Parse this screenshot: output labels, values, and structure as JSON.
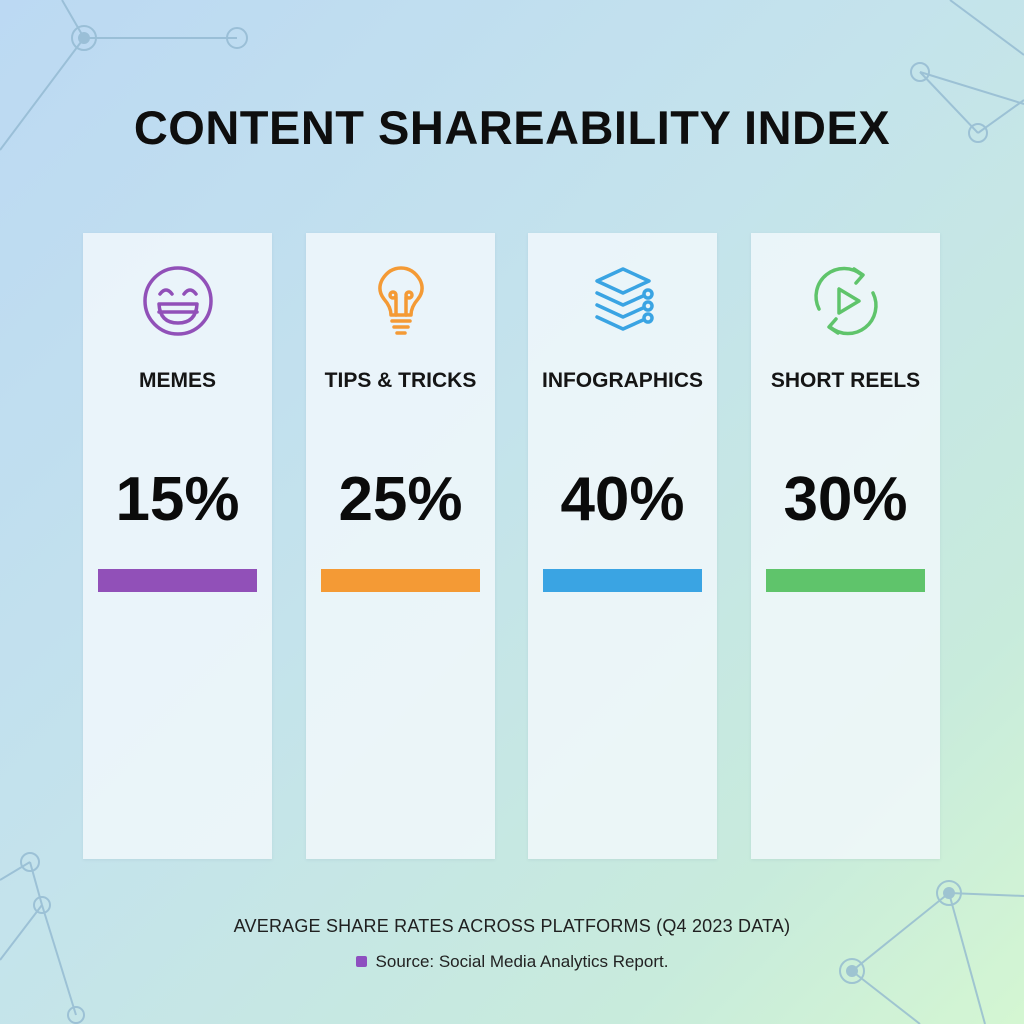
{
  "title": "CONTENT SHAREABILITY INDEX",
  "subtitle": "AVERAGE SHARE RATES ACROSS PLATFORMS (Q4 2023 DATA)",
  "source": "Source: Social Media Analytics Report.",
  "chart_data": {
    "type": "bar",
    "title": "CONTENT SHAREABILITY INDEX",
    "categories": [
      "MEMES",
      "TIPS & TRICKS",
      "INFOGRAPHICS",
      "SHORT REELS"
    ],
    "values": [
      15,
      25,
      40,
      30
    ],
    "value_labels": [
      "15%",
      "25%",
      "40%",
      "30%"
    ],
    "colors": [
      "#9150b8",
      "#f49a35",
      "#3aa4e3",
      "#5fc46b"
    ],
    "icons": [
      "laughing-face-icon",
      "lightbulb-icon",
      "layers-stack-icon",
      "replay-play-icon"
    ],
    "source_swatch_color": "#8e4fc0"
  }
}
